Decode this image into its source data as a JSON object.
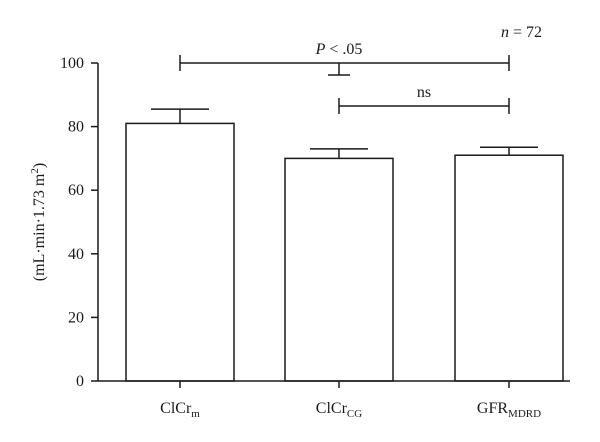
{
  "chart_data": {
    "type": "bar",
    "categories": [
      {
        "base": "ClCr",
        "sub": "m"
      },
      {
        "base": "ClCr",
        "sub": "CG"
      },
      {
        "base": "GFR",
        "sub": "MDRD"
      }
    ],
    "values": [
      81,
      70,
      71
    ],
    "errors": [
      4.5,
      3,
      2.5
    ],
    "ylabel": {
      "main": "(mL·min·1.73 m",
      "sup": "2",
      "close": ")"
    },
    "ylim": [
      0,
      100
    ],
    "yticks": [
      0,
      20,
      40,
      60,
      80,
      100
    ],
    "annotations": {
      "sample": {
        "n_label": "n",
        "rest": " = 72"
      },
      "significance": [
        {
          "from": 0,
          "to": 2,
          "p_label": "P",
          "rest": " < .05"
        },
        {
          "from": 1,
          "to": 2,
          "text": "ns"
        }
      ]
    }
  }
}
